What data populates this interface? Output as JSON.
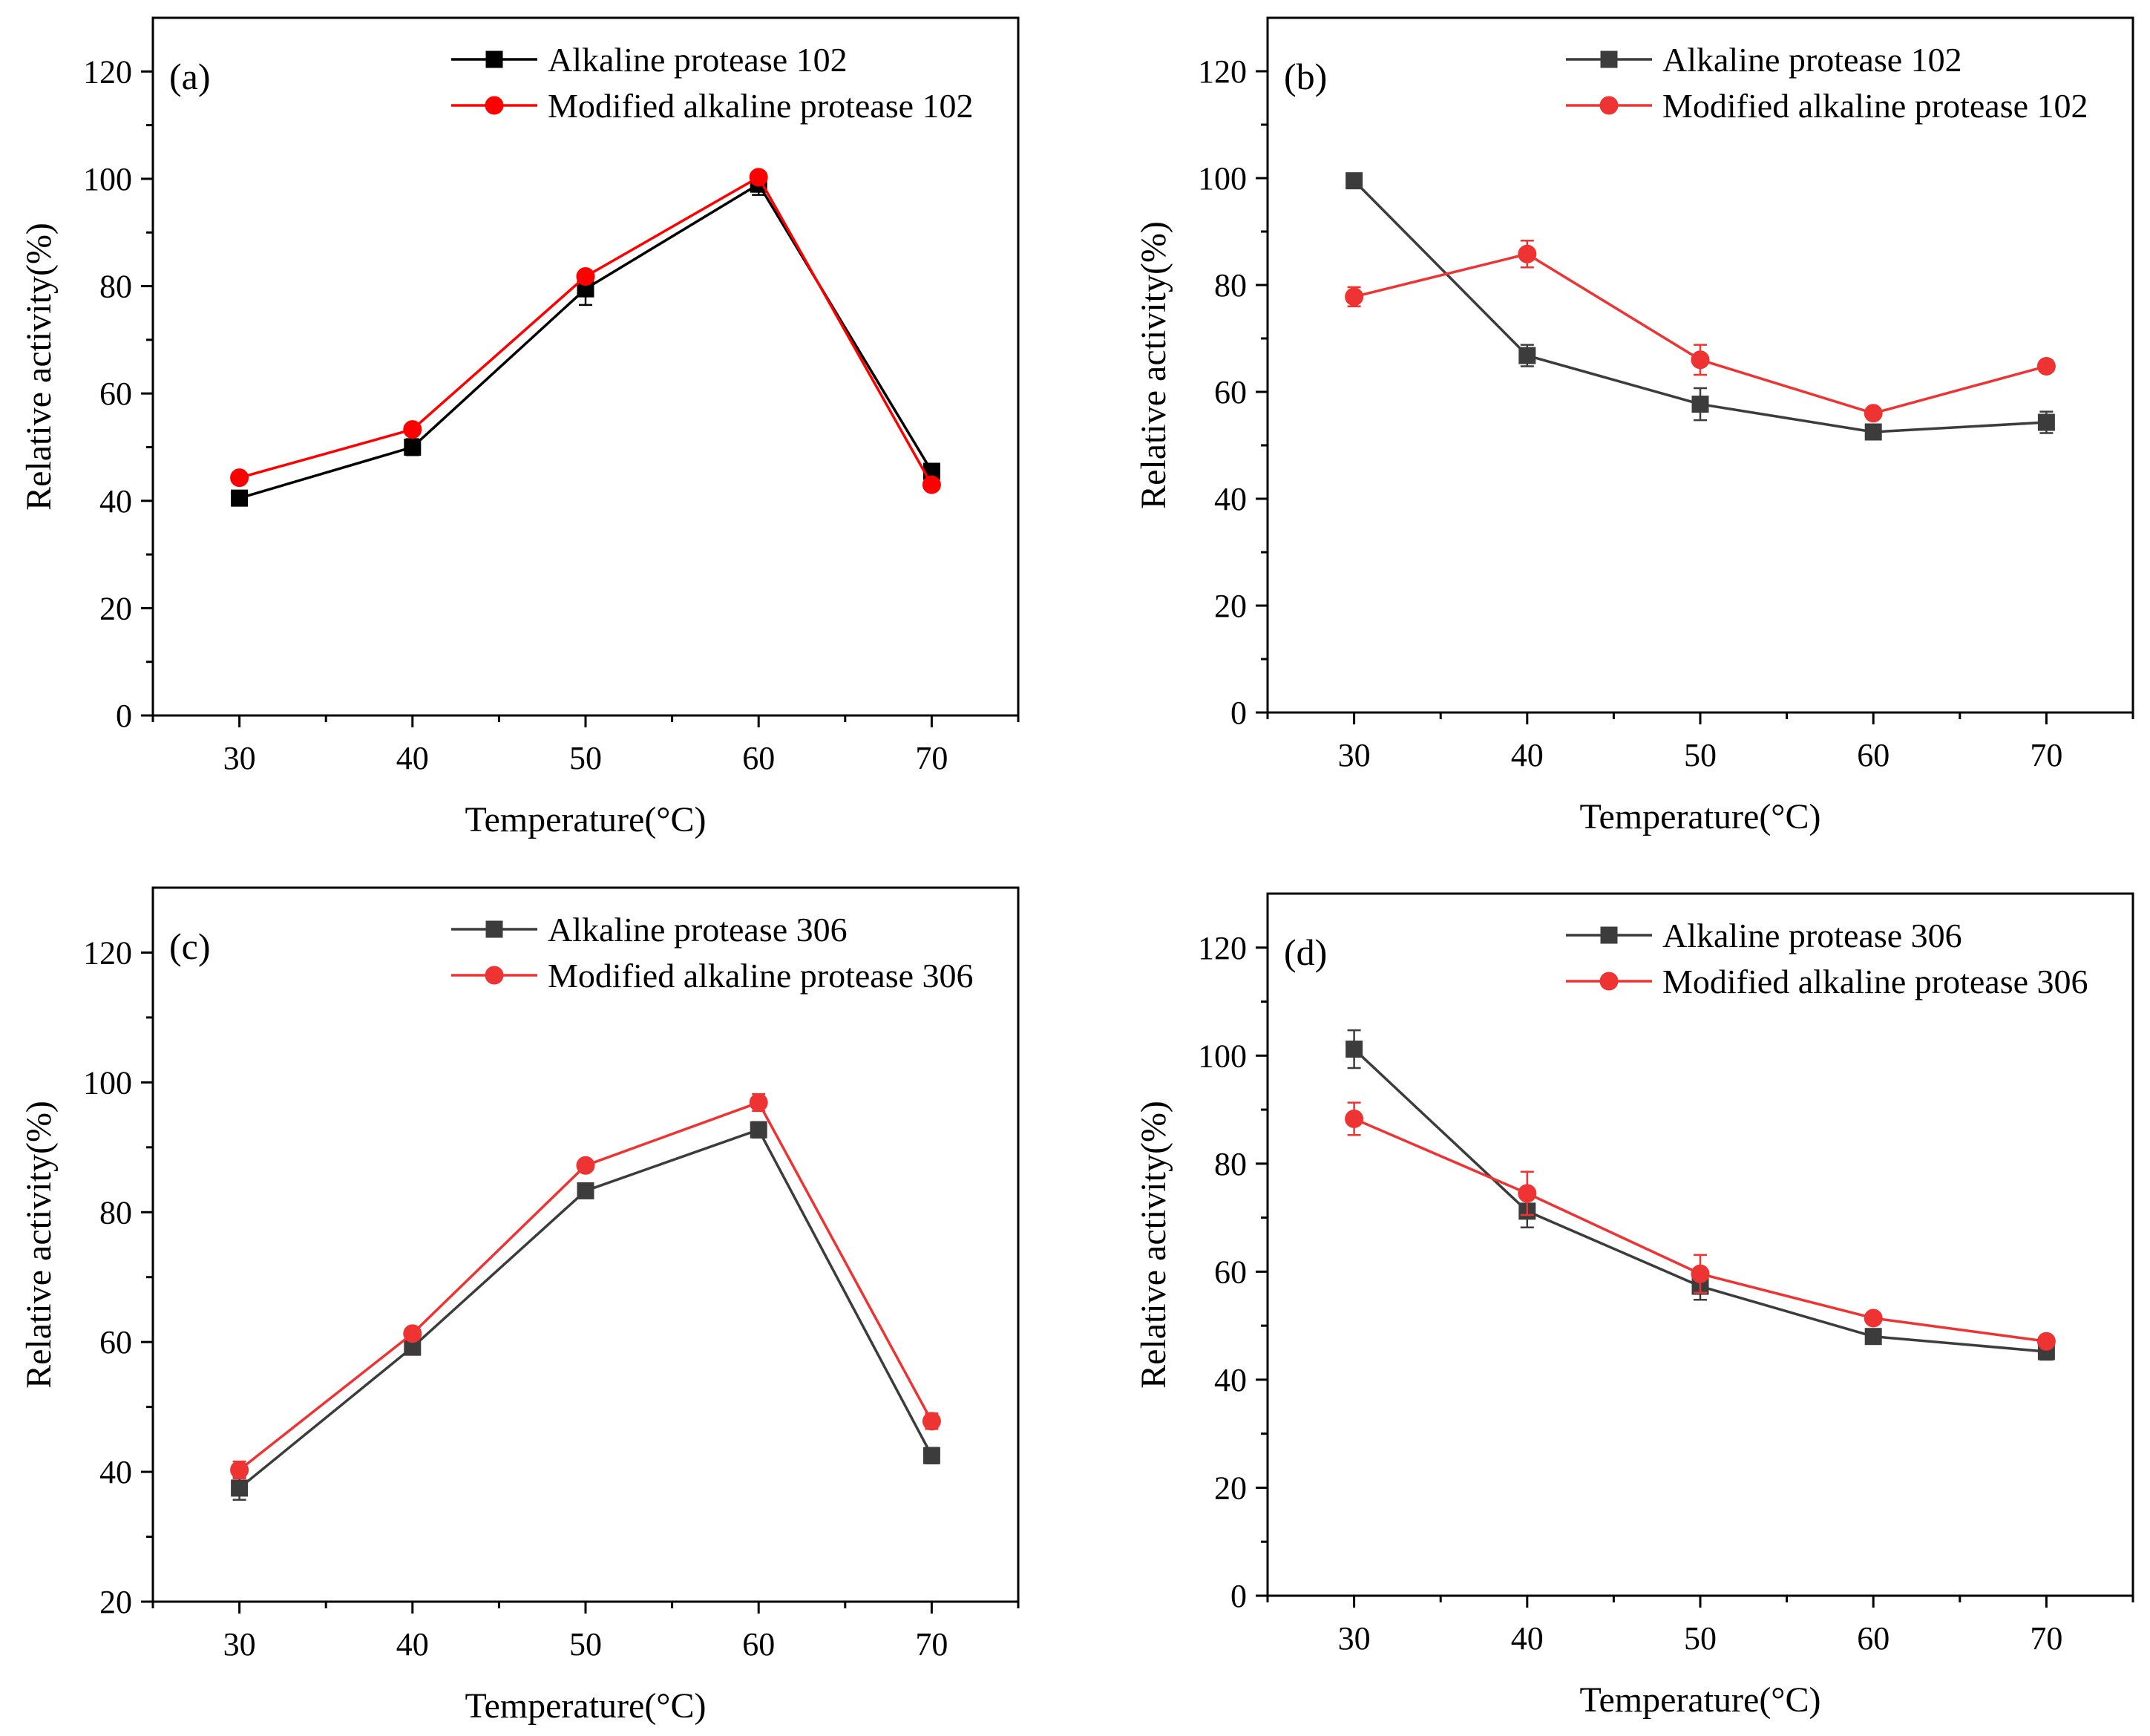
{
  "chart_data": [
    {
      "id": "a",
      "type": "line",
      "panel_label": "(a)",
      "xlabel": "Temperature(°C)",
      "ylabel": "Relative activity(%)",
      "x": [
        30,
        40,
        50,
        60,
        70
      ],
      "xlim": [
        25,
        75
      ],
      "ylim": [
        0,
        130
      ],
      "xticks": [
        30,
        40,
        50,
        60,
        70
      ],
      "yticks": [
        0,
        20,
        40,
        60,
        80,
        100,
        120
      ],
      "legend_position": "top-right",
      "series": [
        {
          "name": "Alkaline protease 102",
          "color": "#000000",
          "marker": "square",
          "values": [
            40.5,
            50,
            79.5,
            99,
            45.5
          ],
          "errors": [
            0.6,
            1.5,
            3,
            2,
            0.8
          ]
        },
        {
          "name": "Modified alkaline protease 102",
          "color": "#ff0000",
          "marker": "circle",
          "values": [
            44.3,
            53.3,
            81.8,
            100.3,
            43
          ],
          "errors": [
            0.5,
            0.6,
            1,
            0.6,
            0.5
          ]
        }
      ]
    },
    {
      "id": "b",
      "type": "line",
      "panel_label": "(b)",
      "xlabel": "Temperature(°C)",
      "ylabel": "Relative activity(%)",
      "x": [
        30,
        40,
        50,
        60,
        70
      ],
      "xlim": [
        25,
        75
      ],
      "ylim": [
        0,
        130
      ],
      "xticks": [
        30,
        40,
        50,
        60,
        70
      ],
      "yticks": [
        0,
        20,
        40,
        60,
        80,
        100,
        120
      ],
      "legend_position": "top-right",
      "series": [
        {
          "name": "Alkaline protease 102",
          "color": "#3c3c3c",
          "marker": "square",
          "values": [
            99.5,
            66.8,
            57.7,
            52.5,
            54.3
          ],
          "errors": [
            0.5,
            2,
            3,
            0.6,
            2
          ]
        },
        {
          "name": "Modified alkaline protease 102",
          "color": "#ee3333",
          "marker": "circle",
          "values": [
            77.8,
            85.8,
            66,
            56,
            64.8
          ],
          "errors": [
            1.8,
            2.5,
            2.8,
            0.6,
            0.5
          ]
        }
      ]
    },
    {
      "id": "c",
      "type": "line",
      "panel_label": "(c)",
      "xlabel": "Temperature(°C)",
      "ylabel": "Relative activity(%)",
      "x": [
        30,
        40,
        50,
        60,
        70
      ],
      "xlim": [
        25,
        75
      ],
      "ylim": [
        20,
        130
      ],
      "xticks": [
        30,
        40,
        50,
        60,
        70
      ],
      "yticks": [
        20,
        40,
        60,
        80,
        100,
        120
      ],
      "legend_position": "top-right",
      "series": [
        {
          "name": "Alkaline protease 306",
          "color": "#3c3c3c",
          "marker": "square",
          "values": [
            37.5,
            59.2,
            83.3,
            92.7,
            42.5
          ],
          "errors": [
            1.8,
            0.8,
            0.6,
            1.2,
            1.2
          ]
        },
        {
          "name": "Modified alkaline protease 306",
          "color": "#ee3333",
          "marker": "circle",
          "values": [
            40.3,
            61.3,
            87.2,
            96.9,
            47.8
          ],
          "errors": [
            1.3,
            0.9,
            0.4,
            1.3,
            1.2
          ]
        }
      ]
    },
    {
      "id": "d",
      "type": "line",
      "panel_label": "(d)",
      "xlabel": "Temperature(°C)",
      "ylabel": "Relative activity(%)",
      "x": [
        30,
        40,
        50,
        60,
        70
      ],
      "xlim": [
        25,
        75
      ],
      "ylim": [
        0,
        130
      ],
      "xticks": [
        30,
        40,
        50,
        60,
        70
      ],
      "yticks": [
        0,
        20,
        40,
        60,
        80,
        100,
        120
      ],
      "legend_position": "top-right",
      "series": [
        {
          "name": "Alkaline protease 306",
          "color": "#3c3c3c",
          "marker": "square",
          "values": [
            101.2,
            71.2,
            57.3,
            48,
            45.2
          ],
          "errors": [
            3.5,
            3,
            2.5,
            0.6,
            1.5
          ]
        },
        {
          "name": "Modified alkaline protease 306",
          "color": "#ee3333",
          "marker": "circle",
          "values": [
            88.3,
            74.5,
            59.6,
            51.4,
            47.1
          ],
          "errors": [
            3,
            4,
            3.5,
            0.6,
            0.7
          ]
        }
      ]
    }
  ]
}
